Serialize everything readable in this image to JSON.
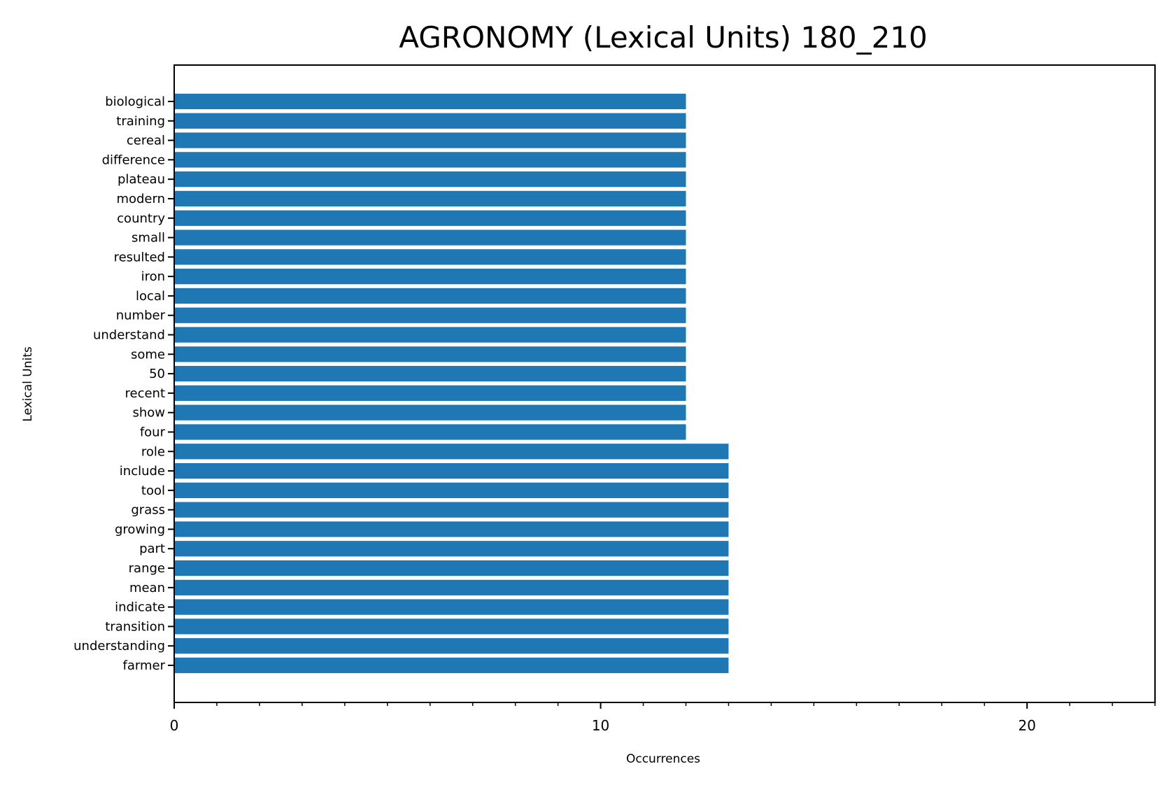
{
  "chart_data": {
    "type": "bar",
    "orientation": "horizontal",
    "title": "AGRONOMY (Lexical Units) 180_210",
    "xlabel": "Occurrences",
    "ylabel": "Lexical Units",
    "xlim": [
      0,
      23
    ],
    "xticks": [
      0,
      10,
      20
    ],
    "x_minor_step": 1,
    "grid": false,
    "bar_color": "#1f77b4",
    "categories": [
      "biological",
      "training",
      "cereal",
      "difference",
      "plateau",
      "modern",
      "country",
      "small",
      "resulted",
      "iron",
      "local",
      "number",
      "understand",
      "some",
      "50",
      "recent",
      "show",
      "four",
      "role",
      "include",
      "tool",
      "grass",
      "growing",
      "part",
      "range",
      "mean",
      "indicate",
      "transition",
      "understanding",
      "farmer"
    ],
    "values": [
      12,
      12,
      12,
      12,
      12,
      12,
      12,
      12,
      12,
      12,
      12,
      12,
      12,
      12,
      12,
      12,
      12,
      12,
      13,
      13,
      13,
      13,
      13,
      13,
      13,
      13,
      13,
      13,
      13,
      13
    ]
  }
}
